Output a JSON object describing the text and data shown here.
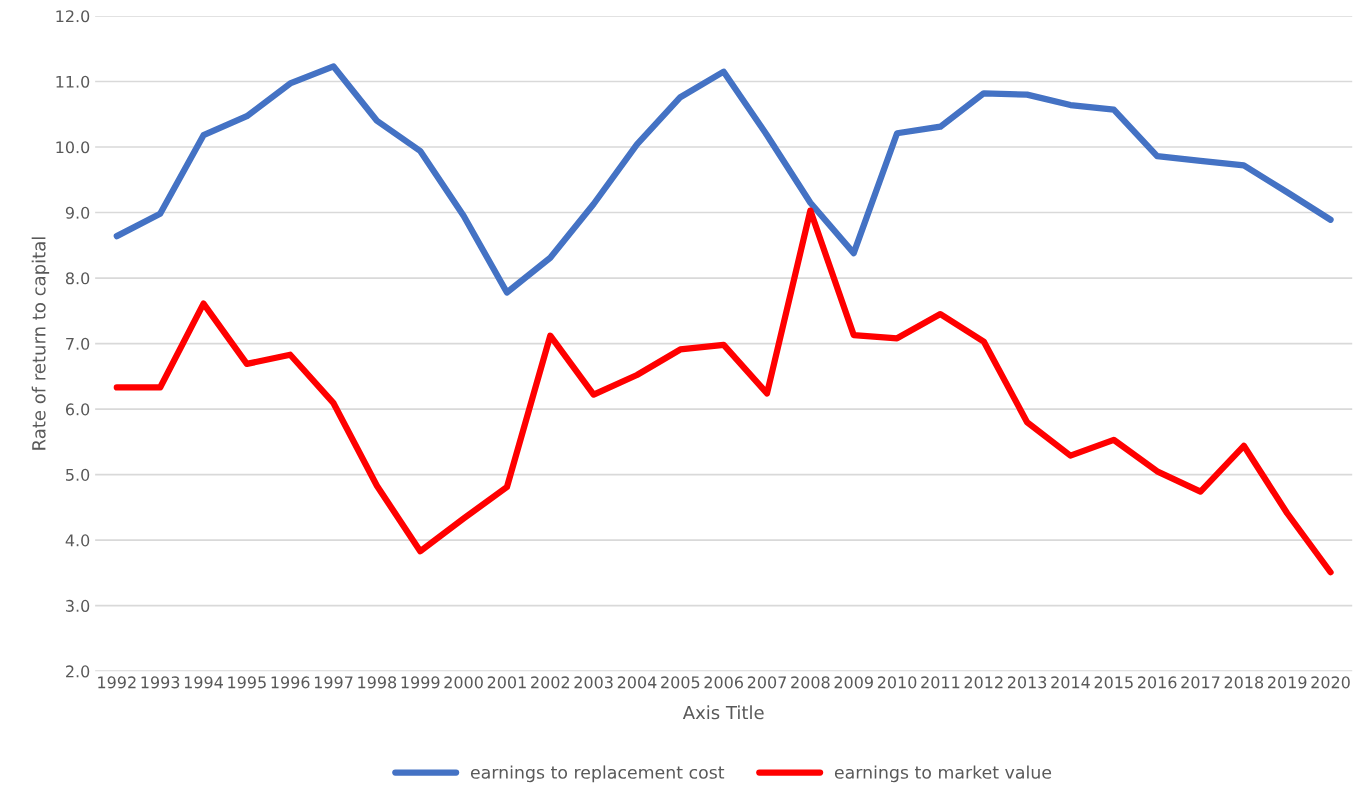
{
  "chart_data": {
    "type": "line",
    "xlabel": "Axis Title",
    "ylabel": "Rate of return to capital",
    "categories": [
      "1992",
      "1993",
      "1994",
      "1995",
      "1996",
      "1997",
      "1998",
      "1999",
      "2000",
      "2001",
      "2002",
      "2003",
      "2004",
      "2005",
      "2006",
      "2007",
      "2008",
      "2009",
      "2010",
      "2011",
      "2012",
      "2013",
      "2014",
      "2015",
      "2016",
      "2017",
      "2018",
      "2019",
      "2020"
    ],
    "series": [
      {
        "name": "earnings to replacement cost",
        "color": "#4472c4",
        "values": [
          8.64,
          8.98,
          10.18,
          10.47,
          10.97,
          11.23,
          10.4,
          9.94,
          8.95,
          7.78,
          8.31,
          9.13,
          10.04,
          10.76,
          11.15,
          10.18,
          9.15,
          8.38,
          10.21,
          10.31,
          10.82,
          10.8,
          10.64,
          10.57,
          9.86,
          9.79,
          9.72,
          9.31,
          8.89
        ]
      },
      {
        "name": "earnings to market value",
        "color": "#ff0000",
        "values": [
          6.33,
          6.33,
          7.61,
          6.69,
          6.83,
          6.09,
          4.83,
          3.83,
          4.33,
          4.81,
          7.12,
          6.22,
          6.52,
          6.91,
          6.98,
          6.24,
          9.03,
          7.13,
          7.08,
          7.45,
          7.03,
          5.8,
          5.29,
          5.53,
          5.05,
          4.74,
          5.44,
          4.41,
          3.51
        ]
      }
    ],
    "ylim": [
      2,
      12
    ],
    "yticks": [
      {
        "value": 2,
        "label": "2.0"
      },
      {
        "value": 3,
        "label": "3.0"
      },
      {
        "value": 4,
        "label": "4.0"
      },
      {
        "value": 5,
        "label": "5.0"
      },
      {
        "value": 6,
        "label": "6.0"
      },
      {
        "value": 7,
        "label": "7.0"
      },
      {
        "value": 8,
        "label": "8.0"
      },
      {
        "value": 9,
        "label": "9.0"
      },
      {
        "value": 10,
        "label": "10.0"
      },
      {
        "value": 11,
        "label": "11.0"
      },
      {
        "value": 12,
        "label": "12.0"
      }
    ],
    "grid": "y",
    "legend": "bottom",
    "marker": "none",
    "line_style": "solid"
  }
}
